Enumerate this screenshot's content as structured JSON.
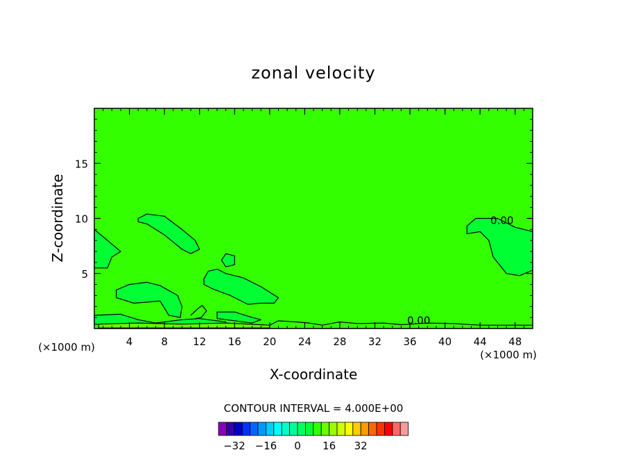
{
  "chart_data": {
    "type": "heatmap",
    "title": "zonal velocity",
    "xlabel": "X-coordinate",
    "ylabel": "Z-coordinate",
    "x_unit": "(×1000 m)",
    "x_unit_right": "(×1000 m)",
    "xlim": [
      0,
      50
    ],
    "ylim": [
      0,
      20
    ],
    "x_ticks": [
      4,
      8,
      12,
      16,
      20,
      24,
      28,
      32,
      36,
      40,
      44,
      48
    ],
    "y_ticks": [
      5,
      10,
      15
    ],
    "x_tick_labels": [
      "4",
      "8",
      "12",
      "16",
      "20",
      "24",
      "28",
      "32",
      "36",
      "40",
      "44",
      "48"
    ],
    "y_tick_labels": [
      "5",
      "10",
      "15"
    ],
    "contour_interval_label": "CONTOUR INTERVAL = 4.000E+00",
    "contour_labels": [
      {
        "text": "0.00",
        "x": 46.5,
        "y": 9.5
      },
      {
        "text": "0.00",
        "x": 37.0,
        "y": 0.4
      }
    ],
    "background_color": "#33ff00",
    "contour_regions": [
      {
        "name": "region-left-upper",
        "fill": "#00ff33",
        "points": [
          [
            0,
            9
          ],
          [
            1.5,
            8
          ],
          [
            3,
            7
          ],
          [
            2,
            6.5
          ],
          [
            1.5,
            5.5
          ],
          [
            0,
            5.5
          ]
        ]
      },
      {
        "name": "region-arc",
        "fill": "#00ff33",
        "points": [
          [
            5,
            10
          ],
          [
            6,
            10.4
          ],
          [
            8,
            10.2
          ],
          [
            10,
            9
          ],
          [
            11.5,
            8
          ],
          [
            12,
            7.2
          ],
          [
            11,
            6.8
          ],
          [
            10,
            7.2
          ],
          [
            8,
            8.5
          ],
          [
            6,
            9.5
          ],
          [
            5,
            9.7
          ]
        ]
      },
      {
        "name": "region-small-blob",
        "fill": "#00ff33",
        "points": [
          [
            14.5,
            6.2
          ],
          [
            15,
            6.8
          ],
          [
            16,
            6.6
          ],
          [
            16,
            5.8
          ],
          [
            15,
            5.6
          ]
        ]
      },
      {
        "name": "region-center",
        "fill": "#00ff33",
        "points": [
          [
            12.5,
            4.5
          ],
          [
            13,
            5.2
          ],
          [
            14,
            5.4
          ],
          [
            15,
            5
          ],
          [
            17,
            4.6
          ],
          [
            19,
            3.8
          ],
          [
            21,
            2.8
          ],
          [
            20.5,
            2.3
          ],
          [
            19,
            2.3
          ],
          [
            17.5,
            2.2
          ],
          [
            15.5,
            3
          ],
          [
            13.5,
            3.6
          ],
          [
            12.5,
            4
          ]
        ]
      },
      {
        "name": "region-left-lower",
        "fill": "#00ff33",
        "points": [
          [
            2.5,
            3.5
          ],
          [
            4,
            4
          ],
          [
            6,
            4.2
          ],
          [
            7.5,
            3.9
          ],
          [
            9.5,
            3
          ],
          [
            10,
            2
          ],
          [
            9.8,
            1
          ],
          [
            8.5,
            1.2
          ],
          [
            7.5,
            2.5
          ],
          [
            6,
            2.4
          ],
          [
            4.5,
            2.3
          ],
          [
            2.5,
            2.8
          ]
        ]
      },
      {
        "name": "region-right",
        "fill": "#00ff33",
        "points": [
          [
            42.5,
            9.3
          ],
          [
            43.5,
            10
          ],
          [
            46,
            10
          ],
          [
            48,
            9.2
          ],
          [
            50,
            8.8
          ],
          [
            50,
            5.3
          ],
          [
            48.5,
            4.8
          ],
          [
            47,
            5
          ],
          [
            45.5,
            6.5
          ],
          [
            45,
            8
          ],
          [
            44,
            8.8
          ],
          [
            42.5,
            8.6
          ]
        ]
      },
      {
        "name": "region-bottom-left-strip",
        "fill": "#00ff33",
        "points": [
          [
            0,
            1.2
          ],
          [
            3,
            1.3
          ],
          [
            5,
            0.8
          ],
          [
            7,
            0.5
          ],
          [
            10,
            0.8
          ],
          [
            12,
            0.9
          ],
          [
            15,
            0.6
          ],
          [
            15,
            0.3
          ],
          [
            10,
            0.2
          ],
          [
            5,
            0.2
          ],
          [
            0,
            0.4
          ]
        ]
      },
      {
        "name": "region-bottom-mid-blob",
        "fill": "#00ff33",
        "points": [
          [
            14,
            1.5
          ],
          [
            16,
            1.5
          ],
          [
            18,
            1
          ],
          [
            19,
            0.8
          ],
          [
            18,
            0.5
          ],
          [
            16,
            0.7
          ],
          [
            14,
            0.9
          ]
        ]
      },
      {
        "name": "region-near-surface",
        "fill": "#66ff00",
        "points": [
          [
            0.5,
            0.4
          ],
          [
            5,
            0.5
          ],
          [
            10,
            0.4
          ],
          [
            15,
            0.5
          ],
          [
            20,
            0.3
          ],
          [
            20,
            0.05
          ],
          [
            0.5,
            0.05
          ]
        ]
      }
    ],
    "contour_lines": [
      {
        "name": "surface-contour",
        "points": [
          [
            20,
            0.3
          ],
          [
            21,
            0.7
          ],
          [
            23,
            0.6
          ],
          [
            24.5,
            0.5
          ],
          [
            26,
            0.3
          ],
          [
            28,
            0.6
          ],
          [
            30,
            0.45
          ],
          [
            33,
            0.5
          ],
          [
            35,
            0.35
          ],
          [
            38,
            0.5
          ],
          [
            41,
            0.45
          ],
          [
            44,
            0.3
          ],
          [
            47,
            0.3
          ],
          [
            50,
            0.3
          ]
        ]
      },
      {
        "name": "small-squiggle-12",
        "points": [
          [
            11,
            1.2
          ],
          [
            11.8,
            1.8
          ],
          [
            12.3,
            2.1
          ],
          [
            12.8,
            1.6
          ],
          [
            12.2,
            1.0
          ],
          [
            11.5,
            0.9
          ]
        ]
      }
    ],
    "colorbar": {
      "colors": [
        "#8800bb",
        "#3300aa",
        "#0000cc",
        "#0033ff",
        "#0066ff",
        "#0099ff",
        "#00ccff",
        "#00ffff",
        "#00ffcc",
        "#00ff99",
        "#00ff66",
        "#00ff33",
        "#33ff00",
        "#66ff00",
        "#99ff00",
        "#ccff00",
        "#ffff00",
        "#ffcc00",
        "#ff9900",
        "#ff6600",
        "#ff3300",
        "#ff0000",
        "#ff6666",
        "#ff9999"
      ],
      "tick_values": [
        -32,
        -16,
        0,
        16,
        32
      ],
      "tick_labels": [
        "−32",
        "−16",
        "0",
        "16",
        "32"
      ],
      "tick_bin_positions": [
        2,
        6,
        10,
        14,
        18
      ]
    }
  }
}
